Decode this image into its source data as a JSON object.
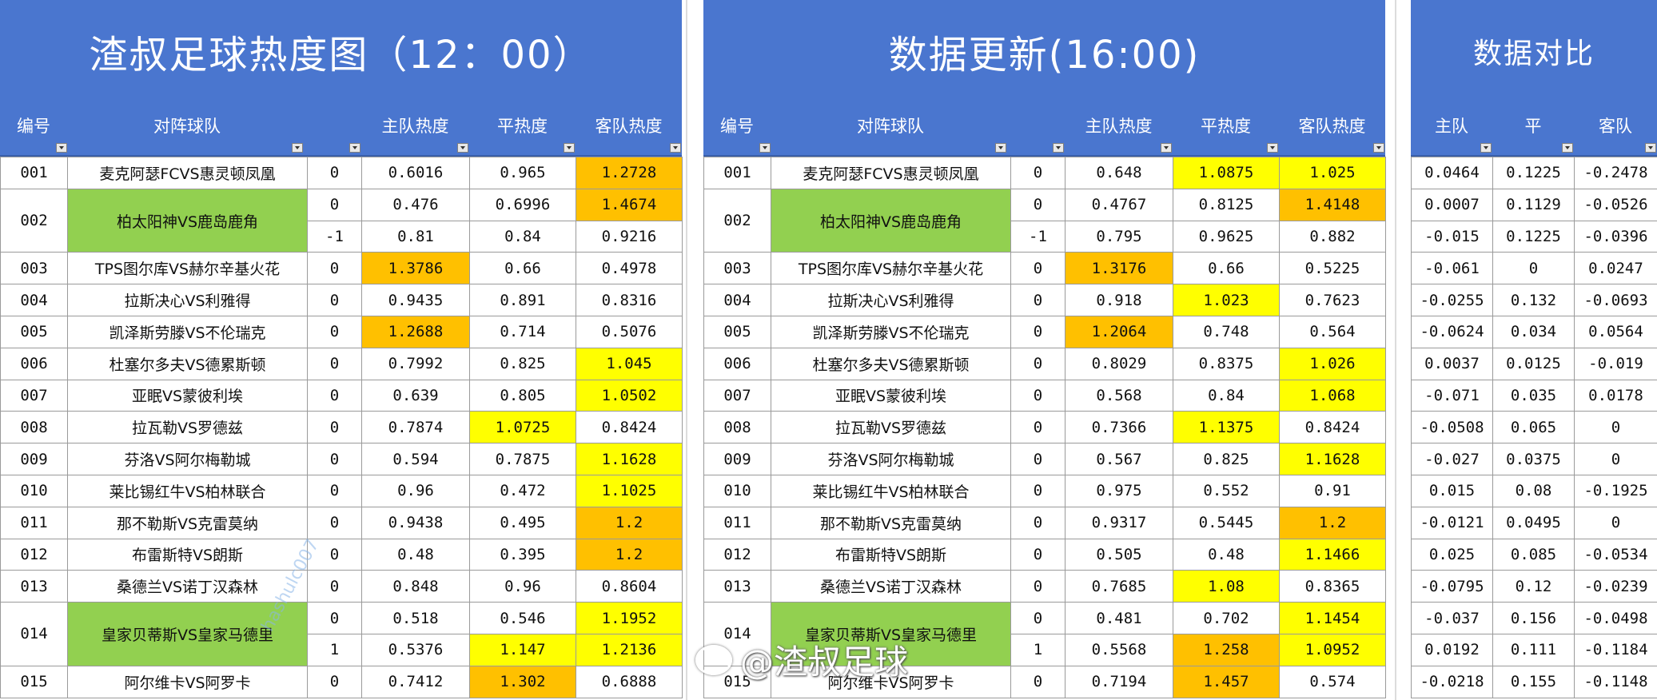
{
  "panels": [
    {
      "title": "渣叔足球热度图（12：00）",
      "headers": [
        "编号",
        "对阵球队",
        "主队热度",
        "平热度",
        "客队热度"
      ]
    },
    {
      "title": "数据更新(16:00)",
      "headers": [
        "编号",
        "对阵球队",
        "主队热度",
        "平热度",
        "客队热度"
      ]
    },
    {
      "title": "数据对比",
      "headers": [
        "主队",
        "平",
        "客队"
      ]
    }
  ],
  "rows": [
    {
      "id": "001",
      "team": "麦克阿瑟FCVS惠灵顿凤凰",
      "hc": "0",
      "a": [
        "0.6016",
        "0.965",
        "1.2728"
      ],
      "b": [
        "0.648",
        "1.0875",
        "1.025"
      ],
      "d": [
        "0.0464",
        "0.1225",
        "-0.2478"
      ]
    },
    {
      "id": "002",
      "team": "柏太阳神VS鹿岛鹿角",
      "hc": "0",
      "a": [
        "0.476",
        "0.6996",
        "1.4674"
      ],
      "b": [
        "0.4767",
        "0.8125",
        "1.4148"
      ],
      "d": [
        "0.0007",
        "0.1129",
        "-0.0526"
      ]
    },
    {
      "id": "",
      "team": "",
      "hc": "-1",
      "a": [
        "0.81",
        "0.84",
        "0.9216"
      ],
      "b": [
        "0.795",
        "0.9625",
        "0.882"
      ],
      "d": [
        "-0.015",
        "0.1225",
        "-0.0396"
      ]
    },
    {
      "id": "003",
      "team": "TPS图尔库VS赫尔辛基火花",
      "hc": "0",
      "a": [
        "1.3786",
        "0.66",
        "0.4978"
      ],
      "b": [
        "1.3176",
        "0.66",
        "0.5225"
      ],
      "d": [
        "-0.061",
        "0",
        "0.0247"
      ]
    },
    {
      "id": "004",
      "team": "拉斯决心VS利雅得",
      "hc": "0",
      "a": [
        "0.9435",
        "0.891",
        "0.8316"
      ],
      "b": [
        "0.918",
        "1.023",
        "0.7623"
      ],
      "d": [
        "-0.0255",
        "0.132",
        "-0.0693"
      ]
    },
    {
      "id": "005",
      "team": "凯泽斯劳滕VS不伦瑞克",
      "hc": "0",
      "a": [
        "1.2688",
        "0.714",
        "0.5076"
      ],
      "b": [
        "1.2064",
        "0.748",
        "0.564"
      ],
      "d": [
        "-0.0624",
        "0.034",
        "0.0564"
      ]
    },
    {
      "id": "006",
      "team": "杜塞尔多夫VS德累斯顿",
      "hc": "0",
      "a": [
        "0.7992",
        "0.825",
        "1.045"
      ],
      "b": [
        "0.8029",
        "0.8375",
        "1.026"
      ],
      "d": [
        "0.0037",
        "0.0125",
        "-0.019"
      ]
    },
    {
      "id": "007",
      "team": "亚眠VS蒙彼利埃",
      "hc": "0",
      "a": [
        "0.639",
        "0.805",
        "1.0502"
      ],
      "b": [
        "0.568",
        "0.84",
        "1.068"
      ],
      "d": [
        "-0.071",
        "0.035",
        "0.0178"
      ]
    },
    {
      "id": "008",
      "team": "拉瓦勒VS罗德兹",
      "hc": "0",
      "a": [
        "0.7874",
        "1.0725",
        "0.8424"
      ],
      "b": [
        "0.7366",
        "1.1375",
        "0.8424"
      ],
      "d": [
        "-0.0508",
        "0.065",
        "0"
      ]
    },
    {
      "id": "009",
      "team": "芬洛VS阿尔梅勒城",
      "hc": "0",
      "a": [
        "0.594",
        "0.7875",
        "1.1628"
      ],
      "b": [
        "0.567",
        "0.825",
        "1.1628"
      ],
      "d": [
        "-0.027",
        "0.0375",
        "0"
      ]
    },
    {
      "id": "010",
      "team": "莱比锡红牛VS柏林联合",
      "hc": "0",
      "a": [
        "0.96",
        "0.472",
        "1.1025"
      ],
      "b": [
        "0.975",
        "0.552",
        "0.91"
      ],
      "d": [
        "0.015",
        "0.08",
        "-0.1925"
      ]
    },
    {
      "id": "011",
      "team": "那不勒斯VS克雷莫纳",
      "hc": "0",
      "a": [
        "0.9438",
        "0.495",
        "1.2"
      ],
      "b": [
        "0.9317",
        "0.5445",
        "1.2"
      ],
      "d": [
        "-0.0121",
        "0.0495",
        "0"
      ]
    },
    {
      "id": "012",
      "team": "布雷斯特VS朗斯",
      "hc": "0",
      "a": [
        "0.48",
        "0.395",
        "1.2"
      ],
      "b": [
        "0.505",
        "0.48",
        "1.1466"
      ],
      "d": [
        "0.025",
        "0.085",
        "-0.0534"
      ]
    },
    {
      "id": "013",
      "team": "桑德兰VS诺丁汉森林",
      "hc": "0",
      "a": [
        "0.848",
        "0.96",
        "0.8604"
      ],
      "b": [
        "0.7685",
        "1.08",
        "0.8365"
      ],
      "d": [
        "-0.0795",
        "0.12",
        "-0.0239"
      ]
    },
    {
      "id": "014",
      "team": "皇家贝蒂斯VS皇家马德里",
      "hc": "0",
      "a": [
        "0.518",
        "0.546",
        "1.1952"
      ],
      "b": [
        "0.481",
        "0.702",
        "1.1454"
      ],
      "d": [
        "-0.037",
        "0.156",
        "-0.0498"
      ]
    },
    {
      "id": "",
      "team": "",
      "hc": "1",
      "a": [
        "0.5376",
        "1.147",
        "1.2136"
      ],
      "b": [
        "0.5568",
        "1.258",
        "1.0952"
      ],
      "d": [
        "0.0192",
        "0.111",
        "-0.1184"
      ]
    },
    {
      "id": "015",
      "team": "阿尔维卡VS阿罗卡",
      "hc": "0",
      "a": [
        "0.7412",
        "1.302",
        "0.6888"
      ],
      "b": [
        "0.7194",
        "1.457",
        "0.574"
      ],
      "d": [
        "-0.0218",
        "0.155",
        "-0.1148"
      ]
    }
  ],
  "watermark": "hashulc007",
  "weibo_label": "@渣叔足球",
  "colors": {
    "header": "#4a76cf",
    "green": "#92d050",
    "yellow": "#ffff00",
    "orange": "#ffc000"
  }
}
